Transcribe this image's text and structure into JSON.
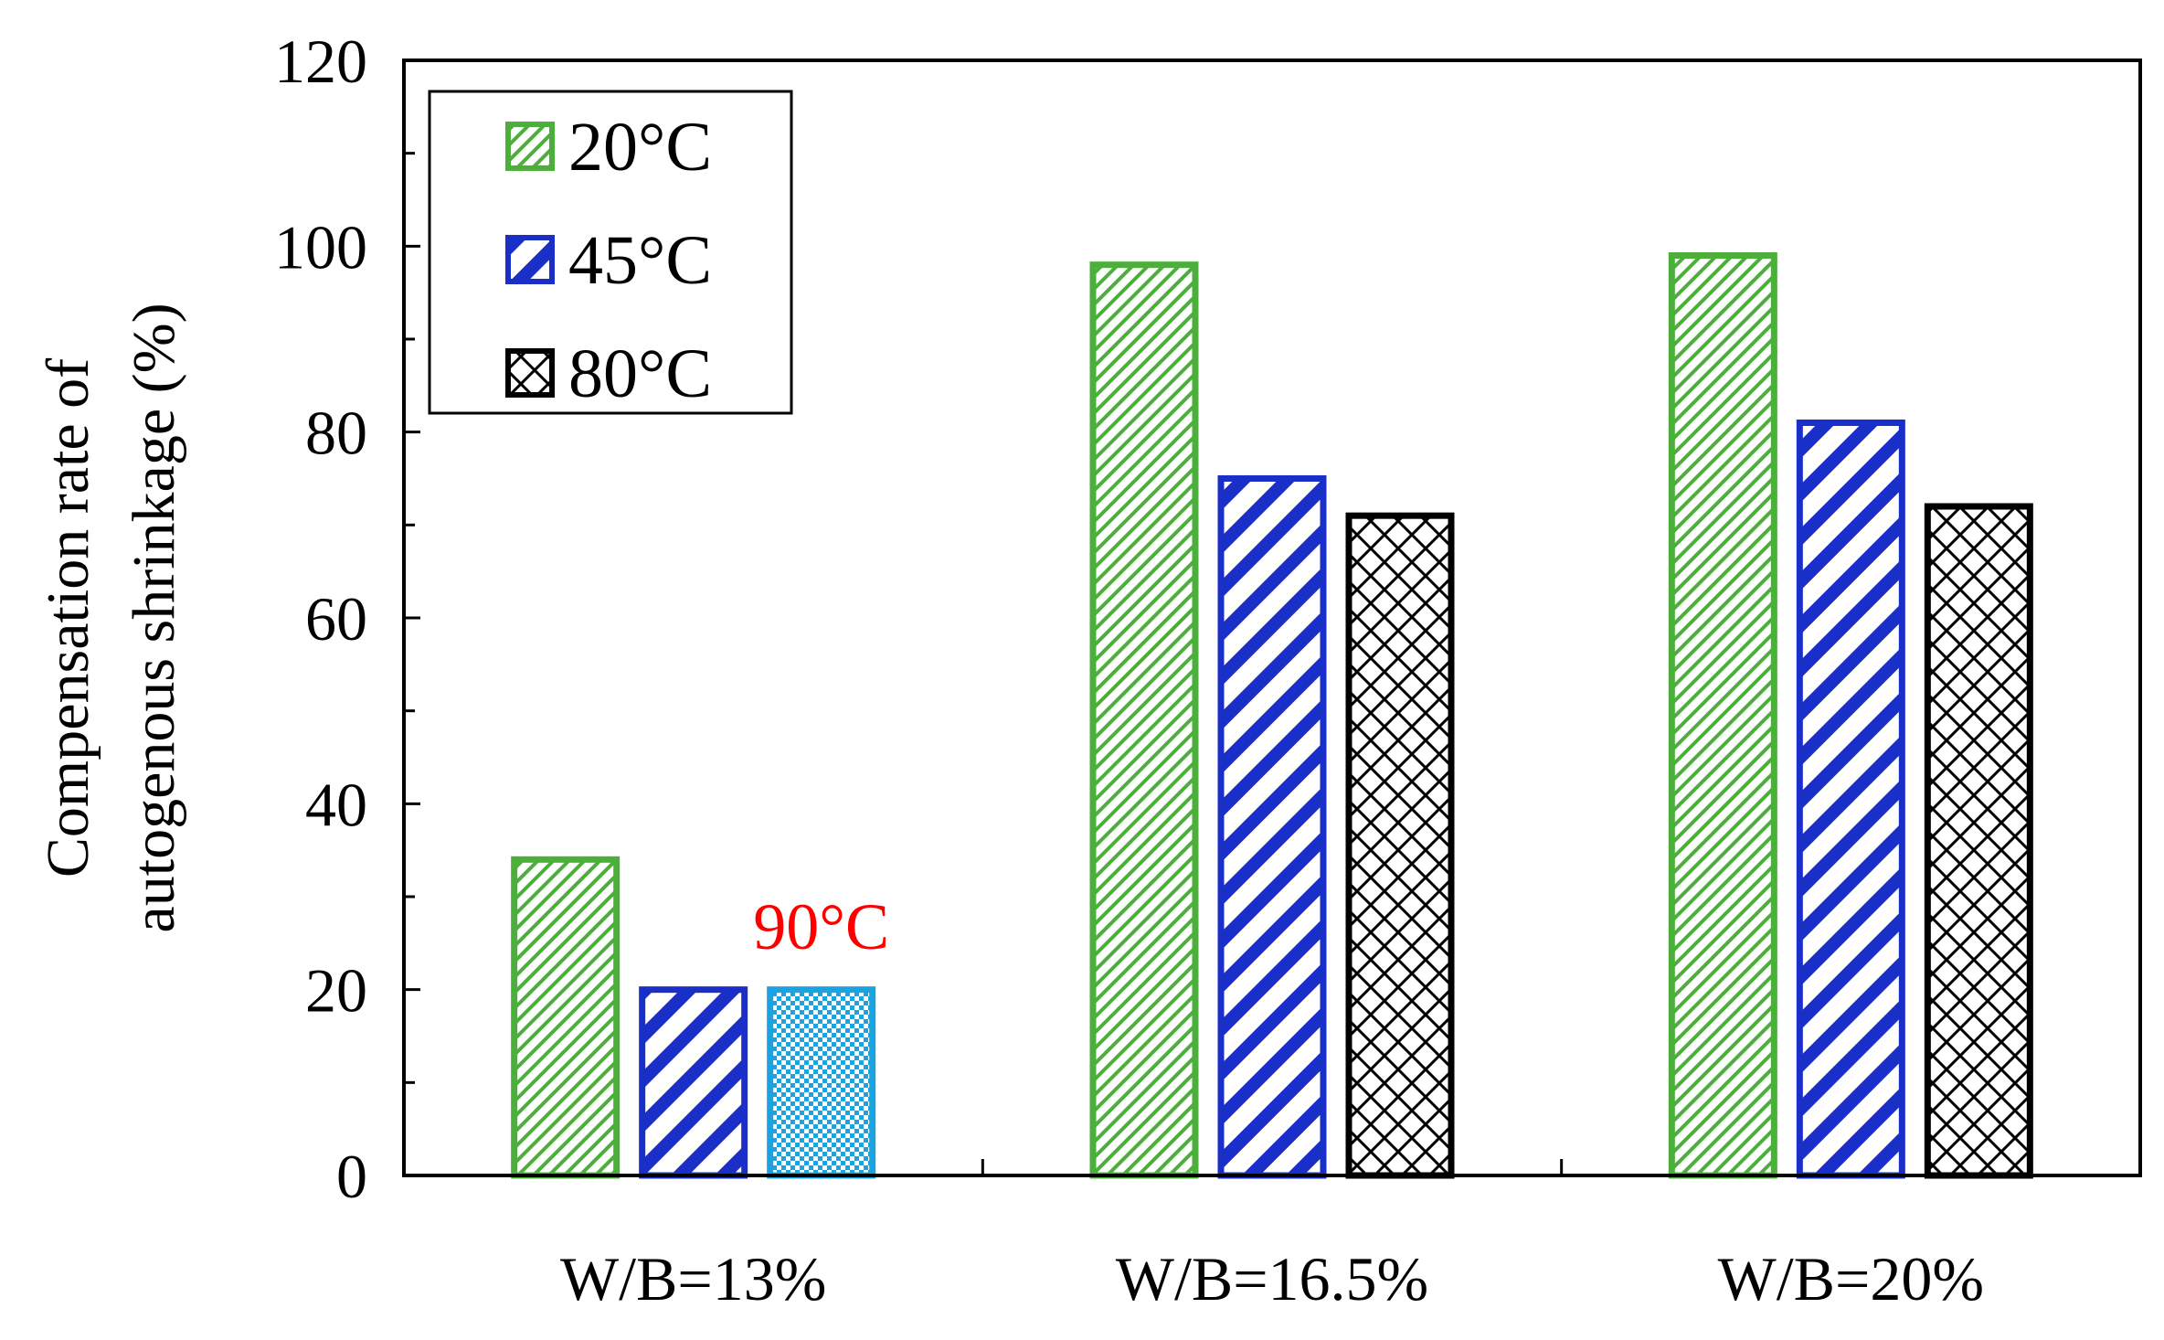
{
  "chart_data": {
    "type": "bar",
    "title": "",
    "xlabel": "",
    "ylabel_line1": "Compensation rate of",
    "ylabel_line2": "autogenous shrinkage (%)",
    "ylim": [
      0,
      120
    ],
    "yticks": [
      0,
      20,
      40,
      60,
      80,
      100,
      120
    ],
    "grid": false,
    "legend_position": "top-left",
    "categories": [
      "W/B=13%",
      "W/B=16.5%",
      "W/B=20%"
    ],
    "series": [
      {
        "name": "20°C",
        "color": "#4caf3c",
        "pattern": "fine-diagonal",
        "values": [
          34,
          98,
          99
        ]
      },
      {
        "name": "45°C",
        "color": "#1a2ec8",
        "pattern": "wide-diagonal",
        "values": [
          20,
          75,
          81
        ]
      },
      {
        "name": "80°C",
        "color": "#000000",
        "pattern": "crosshatch",
        "values": [
          null,
          71,
          72
        ]
      }
    ],
    "extra_bars": [
      {
        "category": "W/B=13%",
        "slot": 2,
        "value": 20,
        "color": "#1aa3e0",
        "pattern": "dots",
        "label": "90°C",
        "label_color": "#ff0000"
      }
    ]
  }
}
